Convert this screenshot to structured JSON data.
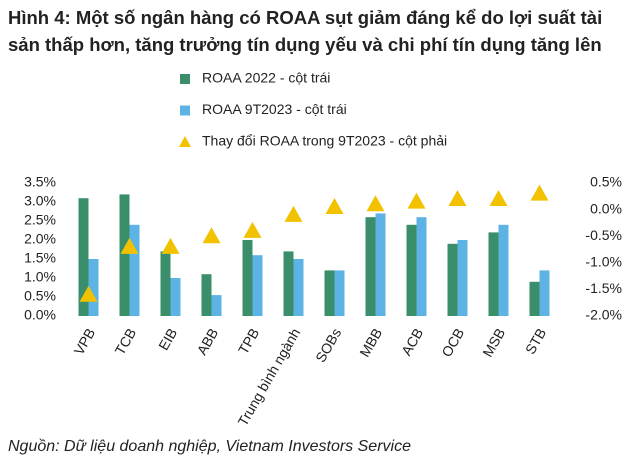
{
  "chart_data": {
    "type": "bar",
    "title": "Hình 4: Một số ngân hàng có ROAA sụt giảm đáng kể do lợi suất tài sản thấp hơn, tăng trưởng tín dụng yếu và chi phí tín dụng tăng lên",
    "source": "Nguồn: Dữ liệu doanh nghiệp, Vietnam Investors Service",
    "categories": [
      "VPB",
      "TCB",
      "EIB",
      "ABB",
      "TPB",
      "Trung bình ngành",
      "SOBs",
      "MBB",
      "ACB",
      "OCB",
      "MSB",
      "STB"
    ],
    "series": [
      {
        "name": "ROAA 2022 - cột trái",
        "color": "#3a8f6a",
        "values": [
          3.1,
          3.2,
          1.7,
          1.1,
          2.0,
          1.7,
          1.2,
          2.6,
          2.4,
          1.9,
          2.2,
          0.9
        ]
      },
      {
        "name": "ROAA 9T2023 - cột trái",
        "color": "#5db3e4",
        "values": [
          1.5,
          2.4,
          1.0,
          0.55,
          1.6,
          1.5,
          1.2,
          2.7,
          2.6,
          2.0,
          2.4,
          1.2
        ]
      },
      {
        "name": "Thay đổi ROAA trong 9T2023 - cột phải",
        "color": "#f2c200",
        "axis": "y2",
        "marker": "triangle",
        "values": [
          -1.6,
          -0.7,
          -0.7,
          -0.5,
          -0.4,
          -0.1,
          0.05,
          0.1,
          0.15,
          0.2,
          0.2,
          0.3
        ]
      }
    ],
    "ylim": [
      0,
      3.5
    ],
    "yticks": [
      {
        "value": 0,
        "label": "0.0%"
      },
      {
        "value": 0.5,
        "label": "0.5%"
      },
      {
        "value": 1,
        "label": "1.0%"
      },
      {
        "value": 1.5,
        "label": "1.5%"
      },
      {
        "value": 2,
        "label": "2.0%"
      },
      {
        "value": 2.5,
        "label": "2.5%"
      },
      {
        "value": 3,
        "label": "3.0%"
      },
      {
        "value": 3.5,
        "label": "3.5%"
      }
    ],
    "y2lim": [
      -2,
      0.5
    ],
    "y2ticks": [
      {
        "value": -2,
        "label": "-2.0%"
      },
      {
        "value": -1.5,
        "label": "-1.5%"
      },
      {
        "value": -1,
        "label": "-1.0%"
      },
      {
        "value": -0.5,
        "label": "-0.5%"
      },
      {
        "value": 0,
        "label": "0.0%"
      },
      {
        "value": 0.5,
        "label": "0.5%"
      }
    ],
    "grid": false
  }
}
